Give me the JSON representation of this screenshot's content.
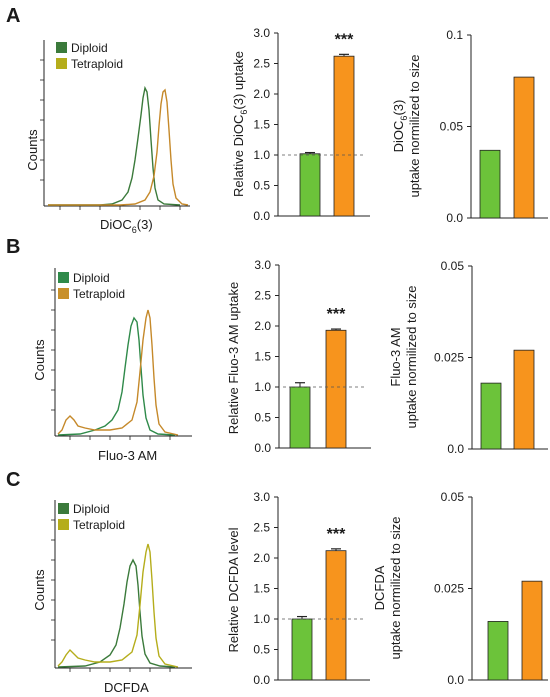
{
  "panels": [
    {
      "letter": "A",
      "histogram": {
        "ylabel": "Counts",
        "xlabel_main": "DiOC",
        "xlabel_sub": "6",
        "xlabel_tail": "(3)",
        "legend": [
          {
            "label": "Diploid",
            "color": "#3b7a3b"
          },
          {
            "label": "Tetraploid",
            "color": "#b5ad1b"
          }
        ]
      },
      "relative": {
        "ylabel_main": "Relative DiOC",
        "ylabel_sub": "6",
        "ylabel_tail": "(3) uptake",
        "ticks": [
          "3.0",
          "2.5",
          "2.0",
          "1.5",
          "1.0",
          "0.5",
          "0.0"
        ]
      },
      "normalized": {
        "ylabel_line1_main": "DiOC",
        "ylabel_line1_sub": "6",
        "ylabel_line1_tail": "(3)",
        "ylabel_line2": "uptake normilized to size",
        "ticks": [
          "0.1",
          "0.05",
          "0.0"
        ]
      }
    },
    {
      "letter": "B",
      "histogram": {
        "ylabel": "Counts",
        "xlabel_main": "Fluo-3 AM",
        "legend": [
          {
            "label": "Diploid",
            "color": "#2f8a4a"
          },
          {
            "label": "Tetraploid",
            "color": "#c8902a"
          }
        ]
      },
      "relative": {
        "ylabel_main": "Relative Fluo-3 AM uptake",
        "ticks": [
          "3.0",
          "2.5",
          "2.0",
          "1.5",
          "1.0",
          "0.5",
          "0.0"
        ]
      },
      "normalized": {
        "ylabel_line1_main": "Fluo-3 AM",
        "ylabel_line2": "uptake normilized to size",
        "ticks": [
          "0.05",
          "0.025",
          "0.0"
        ]
      }
    },
    {
      "letter": "C",
      "histogram": {
        "ylabel": "Counts",
        "xlabel_main": "DCFDA",
        "legend": [
          {
            "label": "Diploid",
            "color": "#3b7a3b"
          },
          {
            "label": "Tetraploid",
            "color": "#b5ad1b"
          }
        ]
      },
      "relative": {
        "ylabel_main": "Relative DCFDA level",
        "ticks": [
          "3.0",
          "2.5",
          "2.0",
          "1.5",
          "1.0",
          "0.5",
          "0.0"
        ]
      },
      "normalized": {
        "ylabel_line1_main": "DCFDA",
        "ylabel_line2": "uptake normilized to size",
        "ticks": [
          "0.05",
          "0.025",
          "0.0"
        ]
      }
    }
  ],
  "chart_data": [
    {
      "type": "bar",
      "panel": "A",
      "categories": [
        "Diploid",
        "Tetraploid"
      ],
      "values": [
        1.02,
        2.62
      ],
      "errors": [
        0.02,
        0.03
      ],
      "reference_line": 1.0,
      "significance": "***",
      "ylabel": "Relative DiOC6(3) uptake",
      "ylim": [
        0,
        3.0
      ],
      "colors": [
        "#6cc33a",
        "#f7941d"
      ]
    },
    {
      "type": "bar",
      "panel": "A",
      "categories": [
        "Diploid",
        "Tetraploid"
      ],
      "values": [
        0.037,
        0.077
      ],
      "ylabel": "DiOC6(3) uptake normilized to size",
      "ylim": [
        0,
        0.1
      ],
      "colors": [
        "#6cc33a",
        "#f7941d"
      ]
    },
    {
      "type": "bar",
      "panel": "B",
      "categories": [
        "Diploid",
        "Tetraploid"
      ],
      "values": [
        1.0,
        1.93
      ],
      "errors": [
        0.07,
        0.02
      ],
      "reference_line": 1.0,
      "significance": "***",
      "ylabel": "Relative Fluo-3 AM uptake",
      "ylim": [
        0,
        3.0
      ],
      "colors": [
        "#6cc33a",
        "#f7941d"
      ]
    },
    {
      "type": "bar",
      "panel": "B",
      "categories": [
        "Diploid",
        "Tetraploid"
      ],
      "values": [
        0.018,
        0.027
      ],
      "ylabel": "Fluo-3 AM uptake normilized to size",
      "ylim": [
        0,
        0.05
      ],
      "colors": [
        "#6cc33a",
        "#f7941d"
      ]
    },
    {
      "type": "bar",
      "panel": "C",
      "categories": [
        "Diploid",
        "Tetraploid"
      ],
      "values": [
        1.0,
        2.12
      ],
      "errors": [
        0.04,
        0.03
      ],
      "reference_line": 1.0,
      "significance": "***",
      "ylabel": "Relative DCFDA level",
      "ylim": [
        0,
        3.0
      ],
      "colors": [
        "#6cc33a",
        "#f7941d"
      ]
    },
    {
      "type": "bar",
      "panel": "C",
      "categories": [
        "Diploid",
        "Tetraploid"
      ],
      "values": [
        0.016,
        0.027
      ],
      "ylabel": "DCFDA uptake normilized to size",
      "ylim": [
        0,
        0.05
      ],
      "colors": [
        "#6cc33a",
        "#f7941d"
      ]
    }
  ]
}
